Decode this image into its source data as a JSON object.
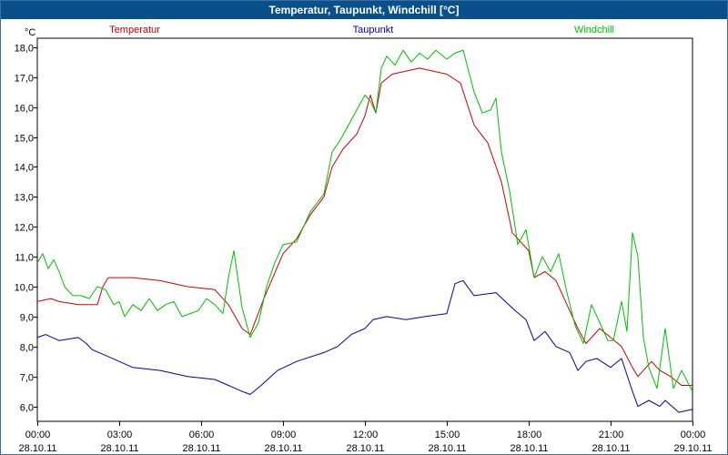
{
  "window": {
    "title": "Temperatur, Taupunkt, Windchill [°C]"
  },
  "chart_data": {
    "type": "line",
    "title": "Temperatur, Taupunkt, Windchill [°C]",
    "ylabel": "°C",
    "ylim": [
      5.5,
      18.3
    ],
    "yticks": [
      6.0,
      7.0,
      8.0,
      9.0,
      10.0,
      11.0,
      12.0,
      13.0,
      14.0,
      15.0,
      16.0,
      17.0,
      18.0
    ],
    "ytick_labels": [
      "6,0",
      "7,0",
      "8,0",
      "9,0",
      "10,0",
      "11,0",
      "12,0",
      "13,0",
      "14,0",
      "15,0",
      "16,0",
      "17,0",
      "18,0"
    ],
    "xlim": [
      0,
      24
    ],
    "xticks": [
      0,
      3,
      6,
      9,
      12,
      15,
      18,
      21,
      24
    ],
    "xtick_time_labels": [
      "00:00",
      "03:00",
      "06:00",
      "09:00",
      "12:00",
      "15:00",
      "18:00",
      "21:00",
      "00:00"
    ],
    "xtick_date_labels": [
      "28.10.11",
      "28.10.11",
      "28.10.11",
      "28.10.11",
      "28.10.11",
      "28.10.11",
      "28.10.11",
      "28.10.11",
      "29.10.11"
    ],
    "grid": true,
    "legend_position": "top",
    "series": [
      {
        "name": "Temperatur",
        "color": "#cc0000",
        "points": [
          [
            0,
            9.5
          ],
          [
            0.5,
            9.6
          ],
          [
            0.8,
            9.5
          ],
          [
            1.5,
            9.4
          ],
          [
            2.2,
            9.4
          ],
          [
            2.4,
            10.0
          ],
          [
            2.6,
            10.3
          ],
          [
            3.5,
            10.3
          ],
          [
            4.5,
            10.2
          ],
          [
            5.5,
            10.0
          ],
          [
            6.5,
            9.9
          ],
          [
            7.0,
            9.4
          ],
          [
            7.5,
            8.6
          ],
          [
            7.8,
            8.4
          ],
          [
            8.3,
            9.6
          ],
          [
            9.0,
            11.1
          ],
          [
            9.5,
            11.6
          ],
          [
            10.0,
            12.4
          ],
          [
            10.5,
            13.0
          ],
          [
            10.8,
            14.0
          ],
          [
            11.2,
            14.6
          ],
          [
            11.7,
            15.1
          ],
          [
            12.0,
            15.7
          ],
          [
            12.2,
            16.4
          ],
          [
            12.4,
            15.8
          ],
          [
            12.6,
            16.8
          ],
          [
            13.0,
            17.1
          ],
          [
            14.0,
            17.3
          ],
          [
            15.0,
            17.1
          ],
          [
            15.5,
            16.8
          ],
          [
            16.0,
            15.4
          ],
          [
            16.5,
            14.8
          ],
          [
            17.0,
            13.5
          ],
          [
            17.4,
            11.8
          ],
          [
            18.0,
            11.2
          ],
          [
            18.2,
            10.3
          ],
          [
            18.6,
            10.5
          ],
          [
            19.0,
            10.2
          ],
          [
            19.5,
            9.2
          ],
          [
            19.8,
            8.6
          ],
          [
            20.1,
            8.1
          ],
          [
            20.6,
            8.6
          ],
          [
            21.0,
            8.3
          ],
          [
            21.4,
            8.0
          ],
          [
            21.8,
            7.3
          ],
          [
            22.0,
            7.0
          ],
          [
            22.5,
            7.5
          ],
          [
            22.8,
            7.2
          ],
          [
            23.2,
            7.0
          ],
          [
            23.6,
            6.7
          ],
          [
            24.0,
            6.7
          ]
        ]
      },
      {
        "name": "Taupunkt",
        "color": "#00009e",
        "points": [
          [
            0,
            8.3
          ],
          [
            0.3,
            8.4
          ],
          [
            0.8,
            8.2
          ],
          [
            1.5,
            8.3
          ],
          [
            1.8,
            8.1
          ],
          [
            2.0,
            7.9
          ],
          [
            2.5,
            7.7
          ],
          [
            3.0,
            7.5
          ],
          [
            3.5,
            7.3
          ],
          [
            4.5,
            7.2
          ],
          [
            5.5,
            7.0
          ],
          [
            6.5,
            6.9
          ],
          [
            7.0,
            6.7
          ],
          [
            7.5,
            6.5
          ],
          [
            7.8,
            6.4
          ],
          [
            8.2,
            6.7
          ],
          [
            8.8,
            7.2
          ],
          [
            9.5,
            7.5
          ],
          [
            10.5,
            7.8
          ],
          [
            11.0,
            8.0
          ],
          [
            11.5,
            8.4
          ],
          [
            12.0,
            8.6
          ],
          [
            12.3,
            8.9
          ],
          [
            12.8,
            9.0
          ],
          [
            13.5,
            8.9
          ],
          [
            14.2,
            9.0
          ],
          [
            15.0,
            9.1
          ],
          [
            15.3,
            10.1
          ],
          [
            15.6,
            10.2
          ],
          [
            16.0,
            9.7
          ],
          [
            16.8,
            9.8
          ],
          [
            17.5,
            9.2
          ],
          [
            17.9,
            8.9
          ],
          [
            18.2,
            8.2
          ],
          [
            18.6,
            8.5
          ],
          [
            19.0,
            8.0
          ],
          [
            19.5,
            7.8
          ],
          [
            19.8,
            7.2
          ],
          [
            20.1,
            7.5
          ],
          [
            20.5,
            7.6
          ],
          [
            21.0,
            7.3
          ],
          [
            21.4,
            7.6
          ],
          [
            21.8,
            6.5
          ],
          [
            22.0,
            6.0
          ],
          [
            22.4,
            6.2
          ],
          [
            22.8,
            6.0
          ],
          [
            23.0,
            6.2
          ],
          [
            23.5,
            5.8
          ],
          [
            24.0,
            5.9
          ]
        ]
      },
      {
        "name": "Windchill",
        "color": "#00c000",
        "points": [
          [
            0,
            10.8
          ],
          [
            0.2,
            11.1
          ],
          [
            0.4,
            10.6
          ],
          [
            0.6,
            10.9
          ],
          [
            0.8,
            10.5
          ],
          [
            1.0,
            10.0
          ],
          [
            1.3,
            9.7
          ],
          [
            1.6,
            9.7
          ],
          [
            1.9,
            9.6
          ],
          [
            2.2,
            10.0
          ],
          [
            2.5,
            9.9
          ],
          [
            2.8,
            9.4
          ],
          [
            3.0,
            9.5
          ],
          [
            3.2,
            9.0
          ],
          [
            3.5,
            9.4
          ],
          [
            3.8,
            9.2
          ],
          [
            4.1,
            9.6
          ],
          [
            4.4,
            9.2
          ],
          [
            4.7,
            9.4
          ],
          [
            5.0,
            9.5
          ],
          [
            5.3,
            9.0
          ],
          [
            5.6,
            9.1
          ],
          [
            5.9,
            9.2
          ],
          [
            6.2,
            9.6
          ],
          [
            6.5,
            9.4
          ],
          [
            6.8,
            9.1
          ],
          [
            7.0,
            10.3
          ],
          [
            7.2,
            11.2
          ],
          [
            7.5,
            9.3
          ],
          [
            7.8,
            8.3
          ],
          [
            8.1,
            8.8
          ],
          [
            8.4,
            10.0
          ],
          [
            8.7,
            10.8
          ],
          [
            9.0,
            11.4
          ],
          [
            9.5,
            11.5
          ],
          [
            10.0,
            12.5
          ],
          [
            10.5,
            13.1
          ],
          [
            10.8,
            14.5
          ],
          [
            11.1,
            14.9
          ],
          [
            11.4,
            15.4
          ],
          [
            11.7,
            15.9
          ],
          [
            12.0,
            16.4
          ],
          [
            12.2,
            16.2
          ],
          [
            12.4,
            15.8
          ],
          [
            12.6,
            17.3
          ],
          [
            12.8,
            17.7
          ],
          [
            13.1,
            17.4
          ],
          [
            13.4,
            17.9
          ],
          [
            13.7,
            17.5
          ],
          [
            14.0,
            17.8
          ],
          [
            14.3,
            17.6
          ],
          [
            14.6,
            17.9
          ],
          [
            15.0,
            17.6
          ],
          [
            15.3,
            17.8
          ],
          [
            15.6,
            17.9
          ],
          [
            16.0,
            16.5
          ],
          [
            16.3,
            15.8
          ],
          [
            16.6,
            15.9
          ],
          [
            16.8,
            16.3
          ],
          [
            17.0,
            14.5
          ],
          [
            17.3,
            13.2
          ],
          [
            17.6,
            11.4
          ],
          [
            17.9,
            11.9
          ],
          [
            18.2,
            10.3
          ],
          [
            18.5,
            11.0
          ],
          [
            18.8,
            10.5
          ],
          [
            19.1,
            11.1
          ],
          [
            19.4,
            9.8
          ],
          [
            19.7,
            8.7
          ],
          [
            20.0,
            8.1
          ],
          [
            20.3,
            9.4
          ],
          [
            20.6,
            8.8
          ],
          [
            20.9,
            8.2
          ],
          [
            21.1,
            8.2
          ],
          [
            21.4,
            9.5
          ],
          [
            21.6,
            8.5
          ],
          [
            21.8,
            11.8
          ],
          [
            22.0,
            11.0
          ],
          [
            22.2,
            8.3
          ],
          [
            22.4,
            7.3
          ],
          [
            22.7,
            6.6
          ],
          [
            23.0,
            8.6
          ],
          [
            23.3,
            6.6
          ],
          [
            23.6,
            7.2
          ],
          [
            24.0,
            6.5
          ]
        ]
      }
    ]
  }
}
